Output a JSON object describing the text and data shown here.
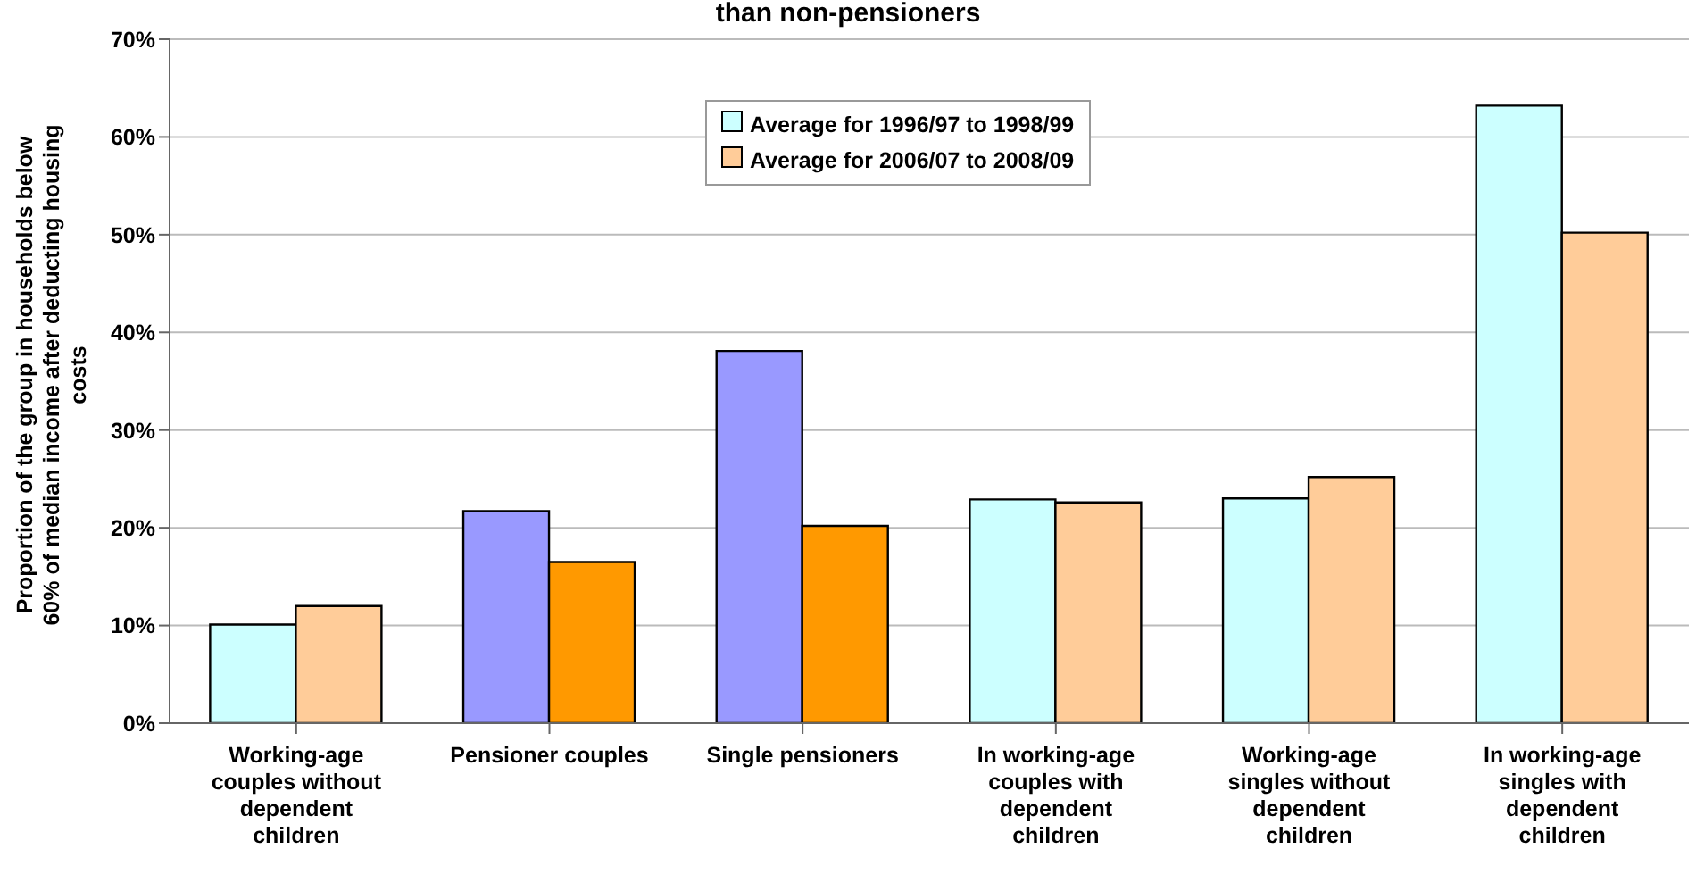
{
  "chart_data": {
    "type": "bar",
    "title": "than non-pensioners",
    "ylabel": "Proportion of the group in households below 60% of median income after deducting housing costs",
    "categories": [
      "Working-age couples without dependent children",
      "Pensioner couples",
      "Single pensioners",
      "In working-age couples with dependent children",
      "Working-age singles without dependent children",
      "In working-age singles with dependent children"
    ],
    "series": [
      {
        "name": "Average for 1996/97 to 1998/99",
        "color": "#ccffff",
        "colors": [
          "#ccffff",
          "#9999ff",
          "#9999ff",
          "#ccffff",
          "#ccffff",
          "#ccffff"
        ],
        "values": [
          10.1,
          21.7,
          38.1,
          22.9,
          23.0,
          63.2
        ]
      },
      {
        "name": "Average for 2006/07 to 2008/09",
        "color": "#ffcc99",
        "colors": [
          "#ffcc99",
          "#ff9900",
          "#ff9900",
          "#ffcc99",
          "#ffcc99",
          "#ffcc99"
        ],
        "values": [
          12.0,
          16.5,
          20.2,
          22.6,
          25.2,
          50.2
        ]
      }
    ],
    "ylim": [
      0,
      70
    ],
    "yticks": [
      {
        "value": 0,
        "label": "0%"
      },
      {
        "value": 10,
        "label": "10%"
      },
      {
        "value": 20,
        "label": "20%"
      },
      {
        "value": 30,
        "label": "30%"
      },
      {
        "value": 40,
        "label": "40%"
      },
      {
        "value": 50,
        "label": "50%"
      },
      {
        "value": 60,
        "label": "60%"
      },
      {
        "value": 70,
        "label": "70%"
      }
    ],
    "grid": "y",
    "legend": "top"
  }
}
